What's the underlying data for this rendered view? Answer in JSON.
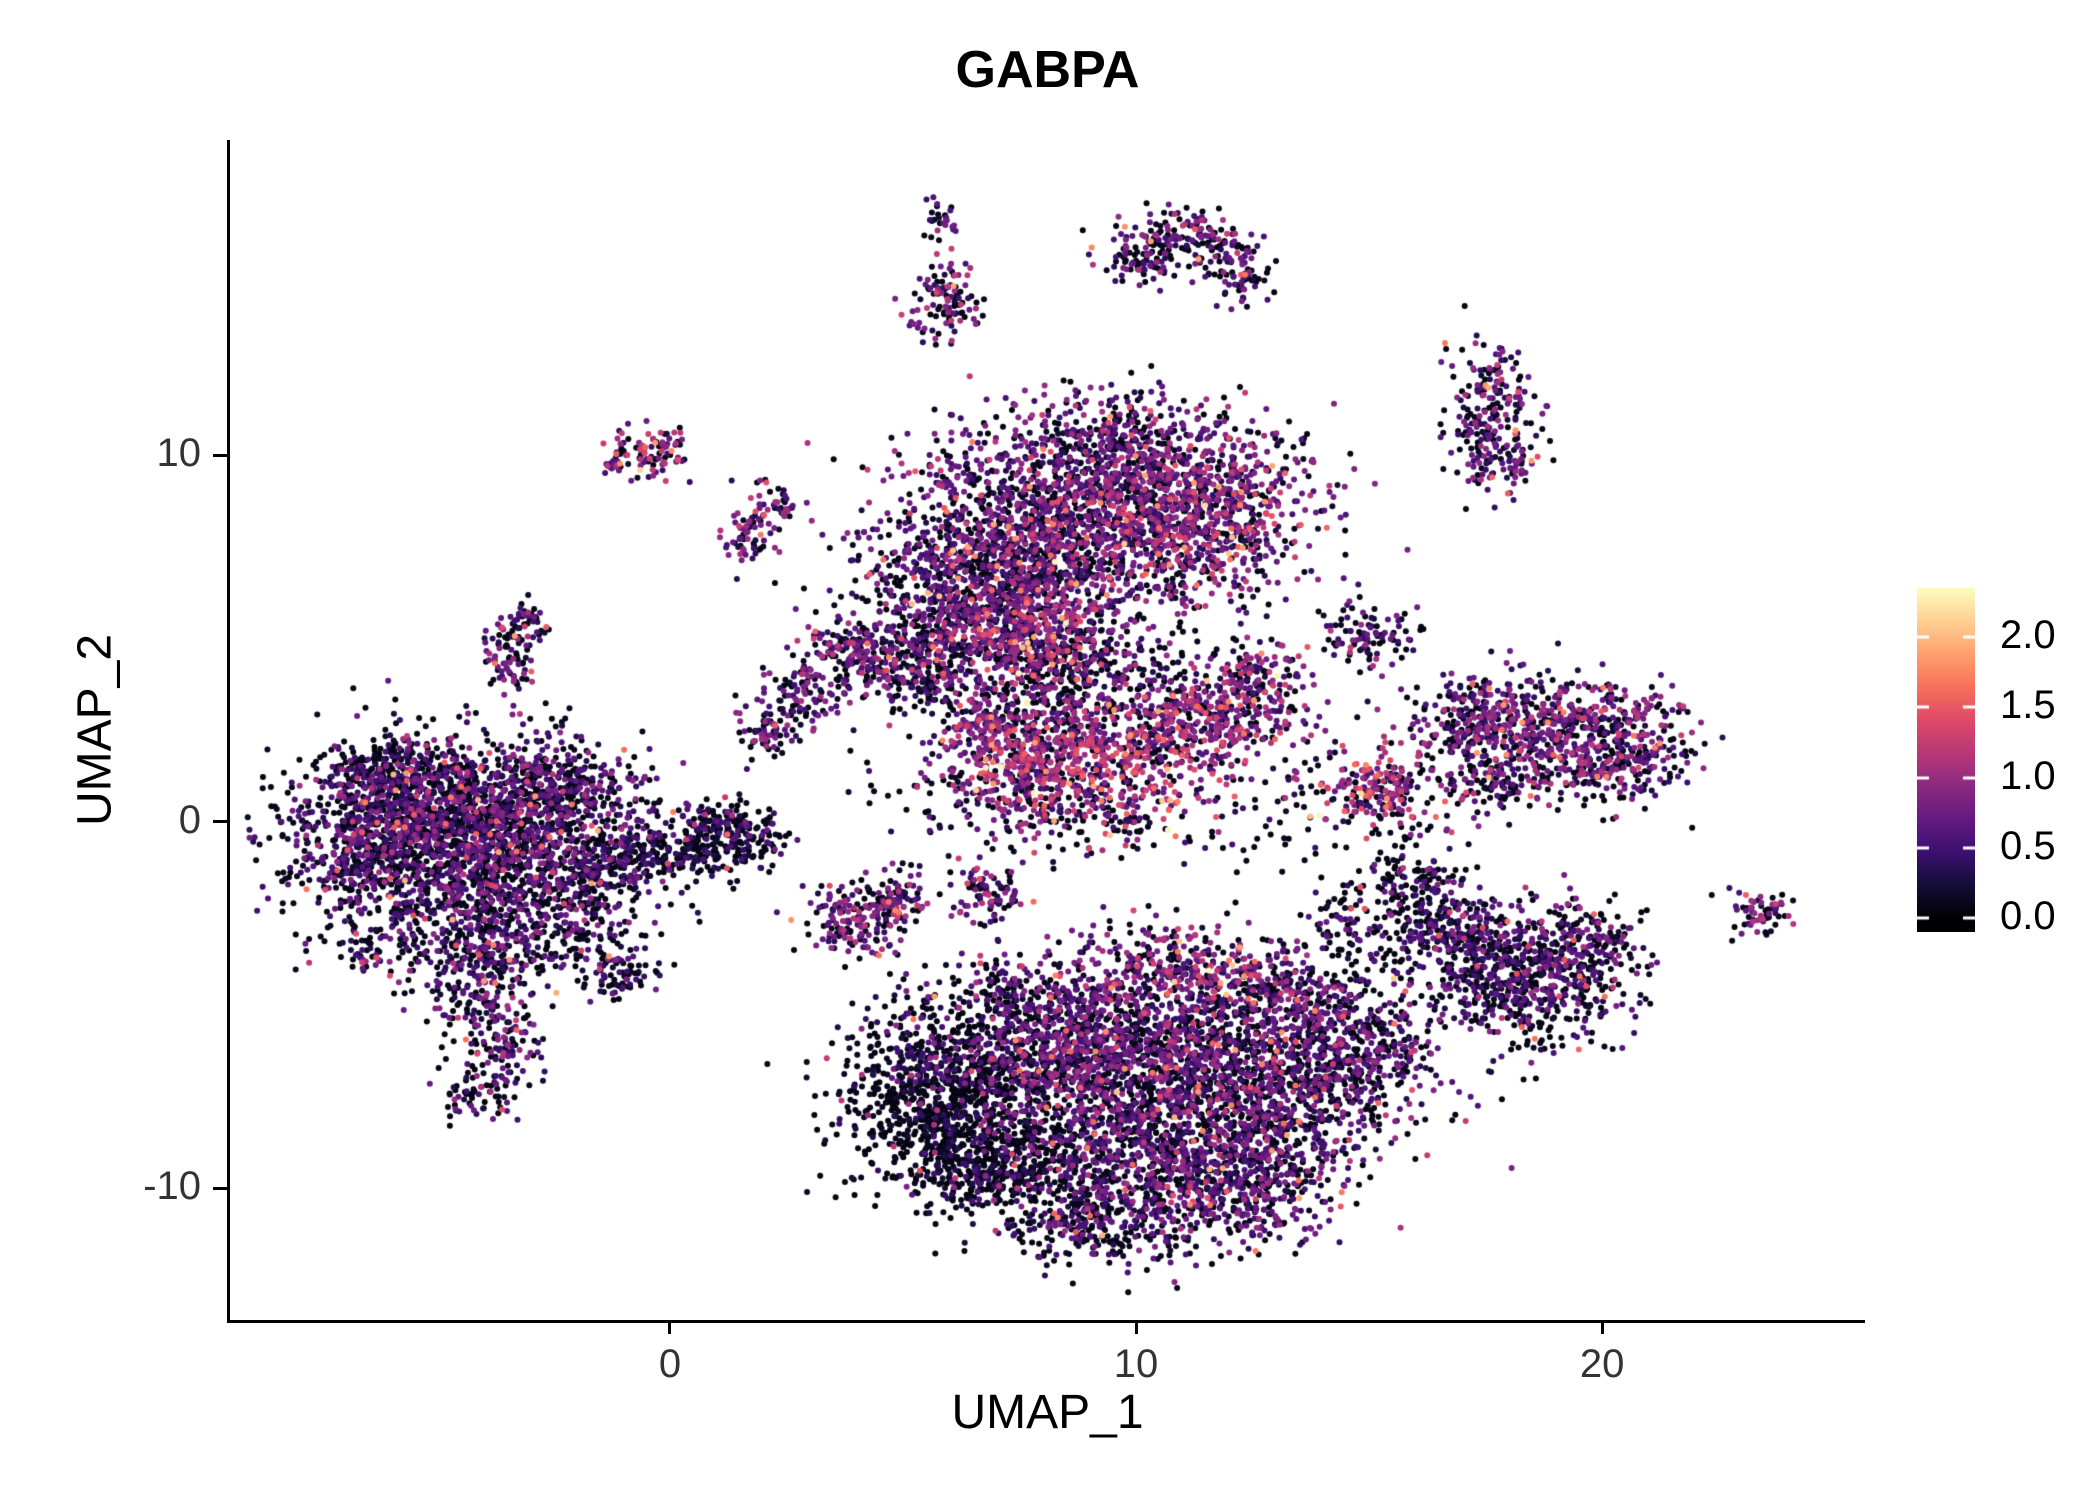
{
  "page": {
    "background": "#ffffff"
  },
  "chart_data": {
    "type": "scatter",
    "title": "GABPA",
    "xlabel": "UMAP_1",
    "ylabel": "UMAP_2",
    "xlim": [
      -9.44,
      25.64
    ],
    "ylim": [
      -13.6,
      18.6
    ],
    "grid": false,
    "legend_position": "right",
    "xticks": [
      {
        "label": "0",
        "value": 0
      },
      {
        "label": "10",
        "value": 10
      },
      {
        "label": "20",
        "value": 20
      }
    ],
    "yticks": [
      {
        "label": "-10",
        "value": -10
      },
      {
        "label": "0",
        "value": 0
      },
      {
        "label": "10",
        "value": 10
      }
    ],
    "colorbar": {
      "ticks": [
        {
          "label": "2.0",
          "value": 2.0
        },
        {
          "label": "1.5",
          "value": 1.5
        },
        {
          "label": "1.0",
          "value": 1.0
        },
        {
          "label": "0.5",
          "value": 0.5
        },
        {
          "label": "0.0",
          "value": 0.0
        }
      ],
      "limits": [
        0,
        2.3
      ],
      "colormap": "magma",
      "stops": [
        "#000004",
        "#140e36",
        "#3b0f70",
        "#641a80",
        "#8c2981",
        "#b73779",
        "#de4968",
        "#f7705c",
        "#fe9f6d",
        "#fecf92",
        "#fcfdbf"
      ]
    },
    "clusters": [
      {
        "x": -4.8,
        "y": 0.3,
        "sx": 1.5,
        "sy": 1.0,
        "n": 1100,
        "z": 0.42,
        "m": 0.62
      },
      {
        "x": -3.4,
        "y": -1.4,
        "sx": 1.4,
        "sy": 1.0,
        "n": 850,
        "z": 0.45,
        "m": 0.6
      },
      {
        "x": -6.3,
        "y": -1.0,
        "sx": 1.0,
        "sy": 1.0,
        "n": 500,
        "z": 0.5,
        "m": 0.55
      },
      {
        "x": -2.3,
        "y": 0.9,
        "sx": 0.9,
        "sy": 0.7,
        "n": 320,
        "z": 0.4,
        "m": 0.6
      },
      {
        "x": -5.9,
        "y": 1.2,
        "sx": 0.8,
        "sy": 0.6,
        "n": 220,
        "z": 0.5,
        "m": 0.5
      },
      {
        "x": -4.3,
        "y": -3.4,
        "sx": 0.9,
        "sy": 0.8,
        "n": 260,
        "z": 0.5,
        "m": 0.6
      },
      {
        "x": -3.9,
        "y": -5.0,
        "sx": 0.6,
        "sy": 0.8,
        "n": 150,
        "z": 0.45,
        "m": 0.65
      },
      {
        "x": -3.5,
        "y": -6.5,
        "sx": 0.35,
        "sy": 0.8,
        "n": 90,
        "z": 0.45,
        "m": 0.6
      },
      {
        "x": -4.4,
        "y": -7.4,
        "sx": 0.25,
        "sy": 0.4,
        "n": 40,
        "z": 0.5,
        "m": 0.55
      },
      {
        "x": -2.0,
        "y": -3.2,
        "sx": 0.8,
        "sy": 0.6,
        "n": 90,
        "z": 0.55,
        "m": 0.5
      },
      {
        "x": -1.0,
        "y": -1.0,
        "sx": 0.8,
        "sy": 0.5,
        "n": 200,
        "z": 0.6,
        "m": 0.45
      },
      {
        "x": 0.6,
        "y": -0.7,
        "sx": 0.8,
        "sy": 0.4,
        "n": 170,
        "z": 0.65,
        "m": 0.4
      },
      {
        "x": 1.6,
        "y": -0.4,
        "sx": 0.5,
        "sy": 0.35,
        "n": 90,
        "z": 0.6,
        "m": 0.45
      },
      {
        "x": 0.9,
        "y": 0.1,
        "sx": 0.5,
        "sy": 0.3,
        "n": 70,
        "z": 0.6,
        "m": 0.45
      },
      {
        "x": 8.3,
        "y": 7.9,
        "sx": 1.8,
        "sy": 1.4,
        "n": 1500,
        "z": 0.32,
        "m": 0.68
      },
      {
        "x": 11.3,
        "y": 8.4,
        "sx": 1.3,
        "sy": 1.2,
        "n": 850,
        "z": 0.25,
        "m": 0.78
      },
      {
        "x": 6.4,
        "y": 6.1,
        "sx": 1.2,
        "sy": 1.1,
        "n": 650,
        "z": 0.38,
        "m": 0.6
      },
      {
        "x": 7.7,
        "y": 5.1,
        "sx": 1.0,
        "sy": 0.8,
        "n": 420,
        "z": 0.22,
        "m": 0.85
      },
      {
        "x": 5.2,
        "y": 4.3,
        "sx": 0.8,
        "sy": 0.7,
        "n": 260,
        "z": 0.4,
        "m": 0.6
      },
      {
        "x": 9.6,
        "y": 10.4,
        "sx": 1.4,
        "sy": 0.7,
        "n": 330,
        "z": 0.35,
        "m": 0.65
      },
      {
        "x": 8.6,
        "y": 3.5,
        "sx": 1.2,
        "sy": 0.8,
        "n": 230,
        "z": 0.45,
        "m": 0.6
      },
      {
        "x": 3.9,
        "y": 4.7,
        "sx": 0.5,
        "sy": 0.5,
        "n": 120,
        "z": 0.35,
        "m": 0.7
      },
      {
        "x": 2.9,
        "y": 3.5,
        "sx": 0.4,
        "sy": 0.5,
        "n": 90,
        "z": 0.4,
        "m": 0.65
      },
      {
        "x": 2.1,
        "y": 2.5,
        "sx": 0.3,
        "sy": 0.4,
        "n": 70,
        "z": 0.4,
        "m": 0.6
      },
      {
        "x": 9.8,
        "y": 4.3,
        "sx": 1.6,
        "sy": 0.6,
        "n": 130,
        "z": 0.5,
        "m": 0.6
      },
      {
        "x": 9.3,
        "y": 1.7,
        "sx": 1.5,
        "sy": 0.9,
        "n": 650,
        "z": 0.16,
        "m": 0.95
      },
      {
        "x": 11.5,
        "y": 2.8,
        "sx": 1.0,
        "sy": 0.6,
        "n": 280,
        "z": 0.2,
        "m": 0.85
      },
      {
        "x": 12.6,
        "y": 3.7,
        "sx": 0.6,
        "sy": 0.5,
        "n": 140,
        "z": 0.25,
        "m": 0.8
      },
      {
        "x": 7.4,
        "y": 1.4,
        "sx": 0.8,
        "sy": 0.7,
        "n": 240,
        "z": 0.25,
        "m": 0.8
      },
      {
        "x": 6.9,
        "y": 2.7,
        "sx": 0.45,
        "sy": 0.5,
        "n": 110,
        "z": 0.3,
        "m": 0.75
      },
      {
        "x": 8.8,
        "y": 0.1,
        "sx": 1.4,
        "sy": 0.5,
        "n": 120,
        "z": 0.6,
        "m": 0.5
      },
      {
        "x": 5.8,
        "y": -7.6,
        "sx": 1.1,
        "sy": 1.2,
        "n": 850,
        "z": 0.78,
        "m": 0.3
      },
      {
        "x": 7.9,
        "y": -6.1,
        "sx": 1.4,
        "sy": 1.1,
        "n": 800,
        "z": 0.4,
        "m": 0.62
      },
      {
        "x": 10.4,
        "y": -6.4,
        "sx": 1.5,
        "sy": 1.2,
        "n": 950,
        "z": 0.35,
        "m": 0.65
      },
      {
        "x": 12.8,
        "y": -7.4,
        "sx": 1.4,
        "sy": 1.2,
        "n": 850,
        "z": 0.42,
        "m": 0.6
      },
      {
        "x": 9.6,
        "y": -9.1,
        "sx": 1.4,
        "sy": 1.0,
        "n": 650,
        "z": 0.45,
        "m": 0.6
      },
      {
        "x": 12.0,
        "y": -9.9,
        "sx": 1.2,
        "sy": 0.9,
        "n": 520,
        "z": 0.4,
        "m": 0.62
      },
      {
        "x": 14.6,
        "y": -6.2,
        "sx": 0.9,
        "sy": 1.0,
        "n": 380,
        "z": 0.45,
        "m": 0.58
      },
      {
        "x": 6.9,
        "y": -9.4,
        "sx": 0.9,
        "sy": 0.8,
        "n": 320,
        "z": 0.7,
        "m": 0.35
      },
      {
        "x": 9.1,
        "y": -11.0,
        "sx": 0.9,
        "sy": 0.6,
        "n": 240,
        "z": 0.5,
        "m": 0.55
      },
      {
        "x": 10.8,
        "y": -4.0,
        "sx": 1.1,
        "sy": 0.7,
        "n": 300,
        "z": 0.28,
        "m": 0.8
      },
      {
        "x": 13.1,
        "y": -4.6,
        "sx": 0.8,
        "sy": 0.6,
        "n": 240,
        "z": 0.35,
        "m": 0.7
      },
      {
        "x": 14.9,
        "y": -3.1,
        "sx": 0.7,
        "sy": 0.8,
        "n": 130,
        "z": 0.55,
        "m": 0.5
      },
      {
        "x": 15.7,
        "y": -1.6,
        "sx": 0.5,
        "sy": 0.8,
        "n": 80,
        "z": 0.6,
        "m": 0.5
      },
      {
        "x": 18.8,
        "y": 2.3,
        "sx": 1.3,
        "sy": 0.85,
        "n": 550,
        "z": 0.3,
        "m": 0.72
      },
      {
        "x": 20.4,
        "y": 2.1,
        "sx": 0.8,
        "sy": 0.7,
        "n": 240,
        "z": 0.32,
        "m": 0.7
      },
      {
        "x": 17.3,
        "y": 2.9,
        "sx": 0.6,
        "sy": 0.5,
        "n": 150,
        "z": 0.35,
        "m": 0.65
      },
      {
        "x": 17.7,
        "y": 1.0,
        "sx": 0.5,
        "sy": 0.4,
        "n": 80,
        "z": 0.45,
        "m": 0.6
      },
      {
        "x": 18.3,
        "y": -4.4,
        "sx": 1.1,
        "sy": 0.9,
        "n": 480,
        "z": 0.5,
        "m": 0.55
      },
      {
        "x": 19.5,
        "y": -3.5,
        "sx": 0.8,
        "sy": 0.7,
        "n": 230,
        "z": 0.45,
        "m": 0.6
      },
      {
        "x": 17.2,
        "y": -3.3,
        "sx": 0.7,
        "sy": 0.6,
        "n": 190,
        "z": 0.5,
        "m": 0.55
      },
      {
        "x": 16.4,
        "y": -2.1,
        "sx": 0.4,
        "sy": 0.6,
        "n": 90,
        "z": 0.55,
        "m": 0.5
      },
      {
        "x": 15.3,
        "y": 0.8,
        "sx": 0.7,
        "sy": 0.55,
        "n": 210,
        "z": 0.2,
        "m": 0.9
      },
      {
        "x": 15.0,
        "y": 5.1,
        "sx": 0.5,
        "sy": 0.45,
        "n": 100,
        "z": 0.4,
        "m": 0.65
      },
      {
        "x": 17.6,
        "y": 11.3,
        "sx": 0.5,
        "sy": 1.0,
        "n": 190,
        "z": 0.35,
        "m": 0.7
      },
      {
        "x": 17.9,
        "y": 10.0,
        "sx": 0.4,
        "sy": 0.4,
        "n": 70,
        "z": 0.4,
        "m": 0.65
      },
      {
        "x": 10.0,
        "y": 15.4,
        "sx": 0.4,
        "sy": 0.4,
        "n": 80,
        "z": 0.4,
        "m": 0.6
      },
      {
        "x": 10.9,
        "y": 16.0,
        "sx": 0.5,
        "sy": 0.35,
        "n": 90,
        "z": 0.35,
        "m": 0.65
      },
      {
        "x": 11.9,
        "y": 15.5,
        "sx": 0.4,
        "sy": 0.4,
        "n": 70,
        "z": 0.4,
        "m": 0.6
      },
      {
        "x": 12.3,
        "y": 14.8,
        "sx": 0.3,
        "sy": 0.35,
        "n": 50,
        "z": 0.45,
        "m": 0.6
      },
      {
        "x": 5.9,
        "y": 14.2,
        "sx": 0.35,
        "sy": 0.6,
        "n": 110,
        "z": 0.3,
        "m": 0.8
      },
      {
        "x": 5.8,
        "y": 16.4,
        "sx": 0.18,
        "sy": 0.3,
        "n": 28,
        "z": 0.4,
        "m": 0.6
      },
      {
        "x": -0.4,
        "y": 10.1,
        "sx": 0.45,
        "sy": 0.35,
        "n": 90,
        "z": 0.3,
        "m": 0.8
      },
      {
        "x": -1.2,
        "y": 9.9,
        "sx": 0.15,
        "sy": 0.2,
        "n": 18,
        "z": 0.4,
        "m": 0.6
      },
      {
        "x": 1.7,
        "y": 7.8,
        "sx": 0.28,
        "sy": 0.45,
        "n": 65,
        "z": 0.3,
        "m": 0.8
      },
      {
        "x": 2.3,
        "y": 8.6,
        "sx": 0.2,
        "sy": 0.3,
        "n": 35,
        "z": 0.35,
        "m": 0.7
      },
      {
        "x": -3.4,
        "y": 4.4,
        "sx": 0.3,
        "sy": 0.5,
        "n": 80,
        "z": 0.4,
        "m": 0.65
      },
      {
        "x": -3.1,
        "y": 5.3,
        "sx": 0.25,
        "sy": 0.4,
        "n": 45,
        "z": 0.4,
        "m": 0.6
      },
      {
        "x": -6.6,
        "y": -3.6,
        "sx": 0.22,
        "sy": 0.25,
        "n": 30,
        "z": 0.55,
        "m": 0.5
      },
      {
        "x": -1.0,
        "y": -4.1,
        "sx": 0.4,
        "sy": 0.35,
        "n": 70,
        "z": 0.5,
        "m": 0.55
      },
      {
        "x": 4.0,
        "y": -2.7,
        "sx": 0.6,
        "sy": 0.5,
        "n": 160,
        "z": 0.35,
        "m": 0.7
      },
      {
        "x": 4.9,
        "y": -2.1,
        "sx": 0.4,
        "sy": 0.4,
        "n": 80,
        "z": 0.35,
        "m": 0.7
      },
      {
        "x": 6.8,
        "y": -1.9,
        "sx": 0.4,
        "sy": 0.45,
        "n": 90,
        "z": 0.3,
        "m": 0.72
      },
      {
        "x": 7.1,
        "y": -4.6,
        "sx": 0.25,
        "sy": 0.35,
        "n": 42,
        "z": 0.55,
        "m": 0.5
      },
      {
        "x": 23.4,
        "y": -2.5,
        "sx": 0.35,
        "sy": 0.3,
        "n": 60,
        "z": 0.3,
        "m": 0.7
      },
      {
        "x": 13.6,
        "y": 0.4,
        "sx": 1.0,
        "sy": 0.9,
        "n": 55,
        "z": 0.7,
        "m": 0.35
      },
      {
        "x": 5.6,
        "y": 0.9,
        "sx": 1.0,
        "sy": 0.8,
        "n": 45,
        "z": 0.6,
        "m": 0.4
      }
    ]
  }
}
